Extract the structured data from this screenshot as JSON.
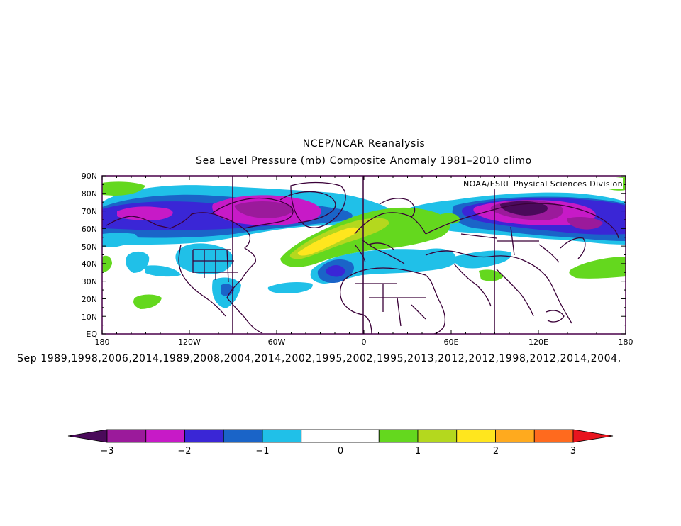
{
  "title": "NCEP/NCAR Reanalysis",
  "subtitle": "Sea Level Pressure (mb) Composite Anomaly 1981–2010 climo",
  "credit": "NOAA/ESRL Physical Sciences Division",
  "dates_line": "Sep 1989,1998,2006,2014,1989,2008,2004,2014,2002,1995,2002,1995,2013,2012,2012,1998,2012,2014,2004,",
  "map": {
    "lon_labels": [
      "180",
      "120W",
      "60W",
      "0",
      "60E",
      "120E",
      "180"
    ],
    "lat_labels": [
      "90N",
      "80N",
      "70N",
      "60N",
      "50N",
      "40N",
      "30N",
      "20N",
      "10N",
      "EQ"
    ]
  },
  "colorbar": {
    "tick_labels": [
      "−3",
      "−2",
      "−1",
      "0",
      "1",
      "2",
      "3"
    ],
    "colors": [
      "#4a0a5a",
      "#9b1a9b",
      "#c71ac7",
      "#3a26d6",
      "#1a64c8",
      "#20c0e8",
      "#ffffff",
      "#ffffff",
      "#64d81e",
      "#b4d81e",
      "#ffe61e",
      "#ffaa1e",
      "#ff6a1e",
      "#e8141e"
    ]
  },
  "colors": {
    "frame": "#4a004a",
    "coast": "#3a0038"
  }
}
